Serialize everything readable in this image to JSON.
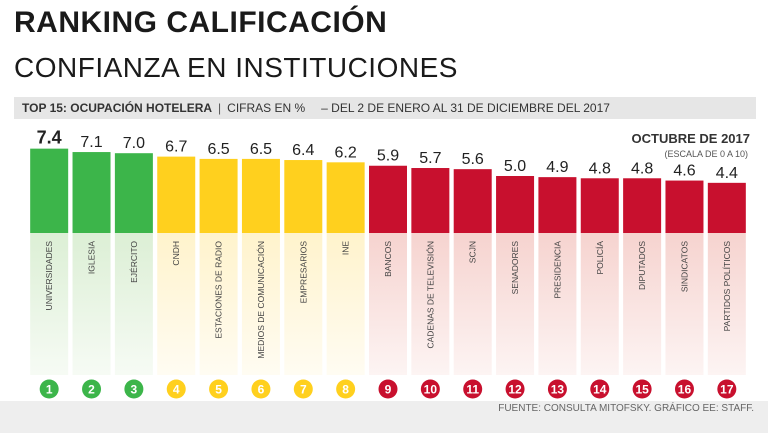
{
  "header": {
    "title": "RANKING CALIFICACIÓN",
    "subtitle": "CONFIANZA EN INSTITUCIONES"
  },
  "subheader": {
    "top_label": "TOP 15: OCUPACIÓN HOTELERA",
    "separator": "|",
    "units": "CIFRAS EN %",
    "period": "– DEL 2 DE ENERO AL 31 DE DICIEMBRE DEL 2017"
  },
  "legend": {
    "period_title": "OCTUBRE DE 2017",
    "scale_note": "(ESCALA DE 0 A 10)"
  },
  "footer": {
    "source": "FUENTE: CONSULTA MITOFSKY. GRÁFICO EE: STAFF."
  },
  "colors": {
    "green": "#3cb54a",
    "yellow": "#ffd01e",
    "red": "#c8102e",
    "green_light": "#dcefd5",
    "yellow_light": "#fff3cc",
    "red_light": "#f6d3cf"
  },
  "chart_data": {
    "type": "bar",
    "scale": [
      0,
      10
    ],
    "categories": [
      "UNIVERSIDADES",
      "IGLESIA",
      "EJÉRCITO",
      "CNDH",
      "ESTACIONES DE RADIO",
      "MEDIOS DE COMUNICACIÓN",
      "EMPRESARIOS",
      "INE",
      "BANCOS",
      "CADENAS DE TELEVISIÓN",
      "SCJN",
      "SENADORES",
      "PRESIDENCIA",
      "POLICÍA",
      "DIPUTADOS",
      "SINDICATOS",
      "PARTIDOS POLÍTICOS"
    ],
    "values": [
      7.4,
      7.1,
      7.0,
      6.7,
      6.5,
      6.5,
      6.4,
      6.2,
      5.9,
      5.7,
      5.6,
      5.0,
      4.9,
      4.8,
      4.8,
      4.6,
      4.4
    ],
    "value_labels": [
      "7.4",
      "7.1",
      "7.0",
      "6.7",
      "6.5",
      "6.5",
      "6.4",
      "6.2",
      "5.9",
      "5.7",
      "5.6",
      "5.0",
      "4.9",
      "4.8",
      "4.8",
      "4.6",
      "4.4"
    ],
    "ranks": [
      "1",
      "2",
      "3",
      "4",
      "5",
      "6",
      "7",
      "8",
      "9",
      "10",
      "11",
      "12",
      "13",
      "14",
      "15",
      "16",
      "17"
    ],
    "groups": [
      "green",
      "green",
      "green",
      "yellow",
      "yellow",
      "yellow",
      "yellow",
      "yellow",
      "red",
      "red",
      "red",
      "red",
      "red",
      "red",
      "red",
      "red",
      "red"
    ]
  }
}
